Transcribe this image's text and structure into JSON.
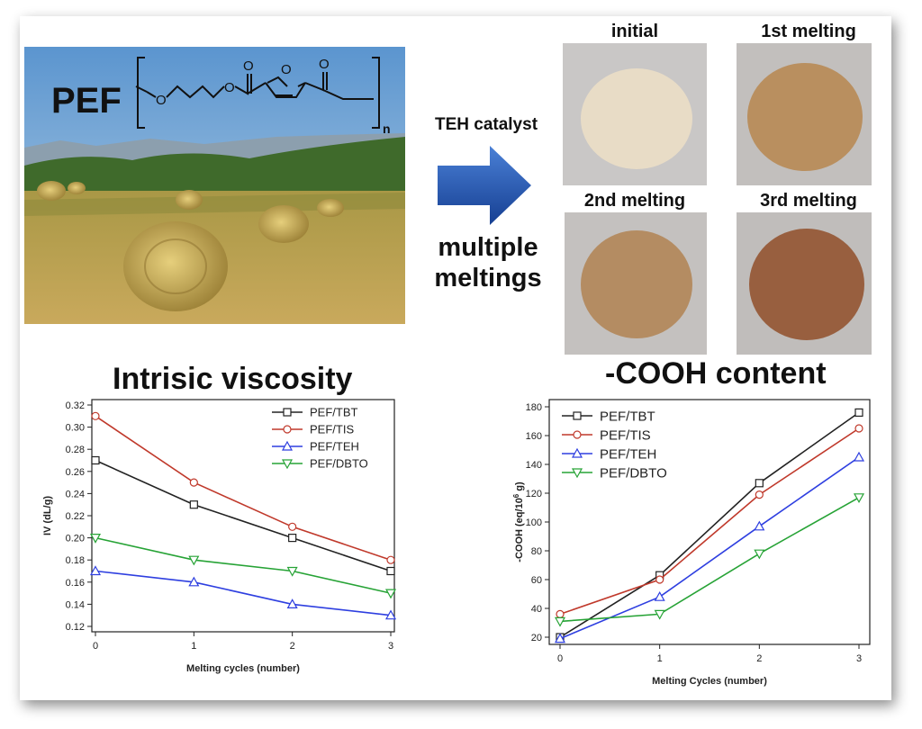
{
  "scheme": {
    "polymer_label": "PEF",
    "chem_atoms": {
      "o1": "O",
      "o2": "O",
      "o3": "O",
      "o4": "O",
      "o5": "O",
      "subscript": "n"
    },
    "arrow_top": "TEH catalyst",
    "arrow_bottom_line1": "multiple",
    "arrow_bottom_line2": "meltings",
    "samples": [
      {
        "label": "initial",
        "color": "#e8dcc6"
      },
      {
        "label": "1st melting",
        "color": "#b98f5f"
      },
      {
        "label": "2nd melting",
        "color": "#b48c62"
      },
      {
        "label": "3rd melting",
        "color": "#985f3f"
      }
    ]
  },
  "chart_data": [
    {
      "type": "line",
      "title": "Intrisic viscosity",
      "xlabel": "Melting cycles (number)",
      "ylabel": "IV (dL/g)",
      "x": [
        0,
        1,
        2,
        3
      ],
      "xlim": [
        0,
        3
      ],
      "ylim": [
        0.12,
        0.32
      ],
      "yticks": [
        "0.12",
        "0.14",
        "0.16",
        "0.18",
        "0.20",
        "0.22",
        "0.24",
        "0.26",
        "0.28",
        "0.30",
        "0.32"
      ],
      "xticks": [
        "0",
        "1",
        "2",
        "3"
      ],
      "legend": "top-right",
      "series": [
        {
          "name": "PEF/TBT",
          "color": "#222222",
          "marker": "square",
          "values": [
            0.27,
            0.23,
            0.2,
            0.17
          ]
        },
        {
          "name": "PEF/TIS",
          "color": "#c0392b",
          "marker": "circle",
          "values": [
            0.31,
            0.25,
            0.21,
            0.18
          ]
        },
        {
          "name": "PEF/TEH",
          "color": "#2e3fe0",
          "marker": "triangle-up",
          "values": [
            0.17,
            0.16,
            0.14,
            0.13
          ]
        },
        {
          "name": "PEF/DBTO",
          "color": "#27a336",
          "marker": "triangle-down",
          "values": [
            0.2,
            0.18,
            0.17,
            0.15
          ]
        }
      ]
    },
    {
      "type": "line",
      "title": "-COOH content",
      "xlabel": "Melting Cycles (number)",
      "ylabel": "-COOH (eq/10",
      "ylabel_sup": "6",
      "ylabel_end": " g)",
      "x": [
        0,
        1,
        2,
        3
      ],
      "xlim": [
        0,
        3
      ],
      "ylim": [
        20,
        180
      ],
      "yticks": [
        "20",
        "40",
        "60",
        "80",
        "100",
        "120",
        "140",
        "160",
        "180"
      ],
      "xticks": [
        "0",
        "1",
        "2",
        "3"
      ],
      "legend": "top-left",
      "series": [
        {
          "name": "PEF/TBT",
          "color": "#222222",
          "marker": "square",
          "values": [
            20,
            63,
            127,
            176
          ]
        },
        {
          "name": "PEF/TIS",
          "color": "#c0392b",
          "marker": "circle",
          "values": [
            36,
            60,
            119,
            165
          ]
        },
        {
          "name": "PEF/TEH",
          "color": "#2e3fe0",
          "marker": "triangle-up",
          "values": [
            19,
            48,
            97,
            145
          ]
        },
        {
          "name": "PEF/DBTO",
          "color": "#27a336",
          "marker": "triangle-down",
          "values": [
            31,
            36,
            78,
            117
          ]
        }
      ]
    }
  ]
}
